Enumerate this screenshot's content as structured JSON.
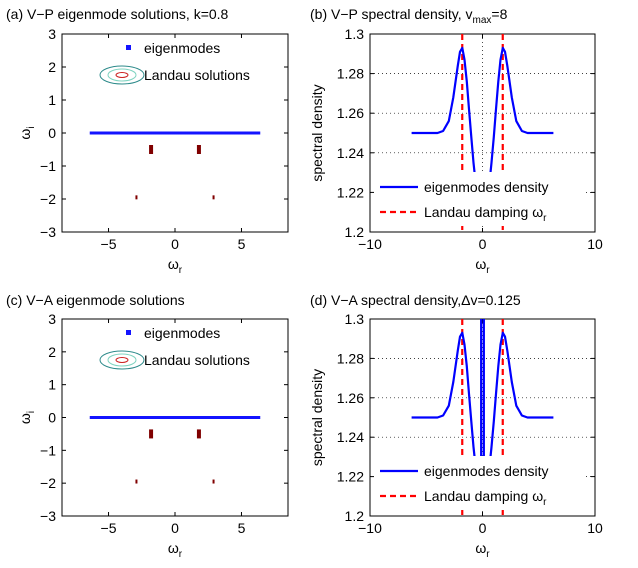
{
  "colors": {
    "eigenmodes": "#1414ff",
    "landau_marker": "#800000",
    "density_line": "#0000ff",
    "landau_line": "#ff0000",
    "grid": "#000000",
    "legend_ring_outer": "#2e8b8b",
    "legend_ring_mid": "#7fd3c0",
    "legend_ring_inner": "#cc2020"
  },
  "chart_data": [
    {
      "panel": "a",
      "type": "scatter",
      "title": "(a) V−P eigenmode solutions, k=0.8",
      "xlabel": "ω",
      "xlabel_sub": "r",
      "ylabel": "ω",
      "ylabel_sub": "i",
      "xlim": [
        -8.5,
        8.5
      ],
      "ylim": [
        -3,
        3
      ],
      "xticks": [
        -5,
        0,
        5
      ],
      "xtick_labels": [
        "−5",
        "0",
        "5"
      ],
      "yticks": [
        -3,
        -2,
        -1,
        0,
        1,
        2,
        3
      ],
      "ytick_labels": [
        "−3",
        "−2",
        "−1",
        "0",
        "1",
        "2",
        "3"
      ],
      "grid": false,
      "legend_placement": "top-right",
      "series": [
        {
          "name": "eigenmodes",
          "marker": "point",
          "x_range": [
            -6.3,
            6.3
          ],
          "count": 90,
          "y": 0
        },
        {
          "name": "Landau solutions",
          "marker": "contour",
          "points": [
            [
              -1.8,
              -0.5
            ],
            [
              1.8,
              -0.5
            ],
            [
              -2.9,
              -1.95
            ],
            [
              2.9,
              -1.95
            ]
          ]
        }
      ]
    },
    {
      "panel": "b",
      "type": "line",
      "title": "(b) V−P spectral density, v",
      "title_sub": "max",
      "title_suffix": "=8",
      "xlabel": "ω",
      "xlabel_sub": "r",
      "ylabel": "spectral density",
      "xlim": [
        -10,
        10
      ],
      "ylim": [
        1.2,
        1.3
      ],
      "xticks": [
        -10,
        0,
        10
      ],
      "xtick_labels": [
        "−10",
        "0",
        "10"
      ],
      "yticks": [
        1.2,
        1.22,
        1.24,
        1.26,
        1.28,
        1.3
      ],
      "ytick_labels": [
        "1.2",
        "1.22",
        "1.24",
        "1.26",
        "1.28",
        "1.3"
      ],
      "grid": true,
      "legend_placement": "bottom",
      "series": [
        {
          "name": "eigenmodes density",
          "style": "solid",
          "x": [
            -6.3,
            -4.0,
            -3.5,
            -3.0,
            -2.6,
            -2.2,
            -2.0,
            -1.8,
            -1.6,
            -1.4,
            -1.2,
            -1.0,
            -0.8,
            -0.6,
            -0.4,
            -0.2,
            0.0,
            0.2,
            0.4,
            0.6,
            0.8,
            1.0,
            1.2,
            1.4,
            1.6,
            1.8,
            2.0,
            2.2,
            2.6,
            3.0,
            3.5,
            4.0,
            6.3
          ],
          "y": [
            1.25,
            1.25,
            1.251,
            1.256,
            1.268,
            1.284,
            1.291,
            1.293,
            1.287,
            1.276,
            1.262,
            1.248,
            1.235,
            1.224,
            1.216,
            1.212,
            1.211,
            1.212,
            1.216,
            1.224,
            1.235,
            1.248,
            1.262,
            1.276,
            1.287,
            1.293,
            1.291,
            1.284,
            1.268,
            1.256,
            1.251,
            1.25,
            1.25
          ]
        },
        {
          "name": "Landau damping ω",
          "name_sub": "r",
          "style": "dashed",
          "vlines": [
            -1.8,
            1.8
          ]
        }
      ]
    },
    {
      "panel": "c",
      "type": "scatter",
      "title": "(c) V−A eigenmode solutions",
      "xlabel": "ω",
      "xlabel_sub": "r",
      "ylabel": "ω",
      "ylabel_sub": "i",
      "xlim": [
        -8.5,
        8.5
      ],
      "ylim": [
        -3,
        3
      ],
      "xticks": [
        -5,
        0,
        5
      ],
      "xtick_labels": [
        "−5",
        "0",
        "5"
      ],
      "yticks": [
        -3,
        -2,
        -1,
        0,
        1,
        2,
        3
      ],
      "ytick_labels": [
        "−3",
        "−2",
        "−1",
        "0",
        "1",
        "2",
        "3"
      ],
      "grid": false,
      "legend_placement": "top-right",
      "series": [
        {
          "name": "eigenmodes",
          "marker": "point",
          "x_range": [
            -6.3,
            6.3
          ],
          "count": 90,
          "y": 0
        },
        {
          "name": "Landau solutions",
          "marker": "contour",
          "points": [
            [
              -1.8,
              -0.5
            ],
            [
              1.8,
              -0.5
            ],
            [
              -2.9,
              -1.95
            ],
            [
              2.9,
              -1.95
            ]
          ]
        }
      ]
    },
    {
      "panel": "d",
      "type": "line",
      "title": "(d) V−A spectral density,Δv=0.125",
      "xlabel": "ω",
      "xlabel_sub": "r",
      "ylabel": "spectral density",
      "xlim": [
        -10,
        10
      ],
      "ylim": [
        1.2,
        1.3
      ],
      "xticks": [
        -10,
        0,
        10
      ],
      "xtick_labels": [
        "−10",
        "0",
        "10"
      ],
      "yticks": [
        1.2,
        1.22,
        1.24,
        1.26,
        1.28,
        1.3
      ],
      "ytick_labels": [
        "1.2",
        "1.22",
        "1.24",
        "1.26",
        "1.28",
        "1.3"
      ],
      "grid": true,
      "legend_placement": "bottom",
      "series": [
        {
          "name": "eigenmodes density",
          "style": "solid",
          "x": [
            -6.3,
            -4.0,
            -3.5,
            -3.0,
            -2.6,
            -2.2,
            -2.0,
            -1.8,
            -1.6,
            -1.4,
            -1.2,
            -1.0,
            -0.8,
            -0.6,
            -0.4,
            -0.2,
            0.0,
            0.2,
            0.4,
            0.6,
            0.8,
            1.0,
            1.2,
            1.4,
            1.6,
            1.8,
            2.0,
            2.2,
            2.6,
            3.0,
            3.5,
            4.0,
            6.3
          ],
          "y": [
            1.25,
            1.25,
            1.251,
            1.256,
            1.268,
            1.284,
            1.291,
            1.293,
            1.287,
            1.276,
            1.262,
            1.248,
            1.235,
            1.224,
            1.216,
            1.212,
            1.211,
            1.212,
            1.216,
            1.224,
            1.235,
            1.248,
            1.262,
            1.276,
            1.287,
            1.293,
            1.291,
            1.284,
            1.268,
            1.256,
            1.251,
            1.25,
            1.25
          ],
          "spikes": [
            {
              "x": -0.12,
              "y_top": 1.3
            },
            {
              "x": 0.12,
              "y_top": 1.3
            }
          ]
        },
        {
          "name": "Landau damping ω",
          "name_sub": "r",
          "style": "dashed",
          "vlines": [
            -1.8,
            1.8
          ]
        }
      ]
    }
  ]
}
